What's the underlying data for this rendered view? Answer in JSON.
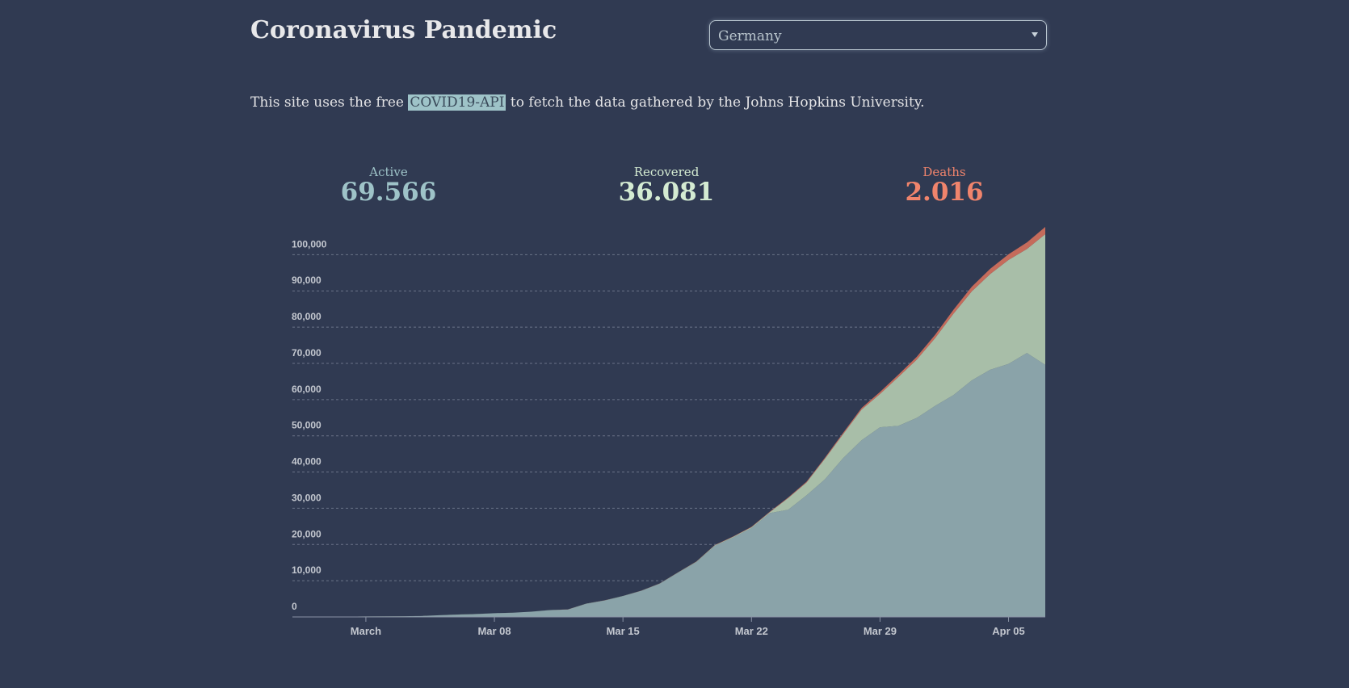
{
  "header": {
    "title": "Coronavirus Pandemic",
    "country": "Germany"
  },
  "intro": {
    "before": "This site uses the free",
    "link": "COVID19-API",
    "after": "to fetch the data gathered by the Johns Hopkins University."
  },
  "stats": [
    {
      "label": "Active",
      "value": "69.566",
      "color": "#9ec3c8"
    },
    {
      "label": "Recovered",
      "value": "36.081",
      "color": "#d4ebd2"
    },
    {
      "label": "Deaths",
      "value": "2.016",
      "color": "#f0846c"
    }
  ],
  "chart_data": {
    "type": "stacked-area",
    "x": [
      "Feb 26",
      "Feb 27",
      "Feb 28",
      "Feb 29",
      "Mar 01",
      "Mar 02",
      "Mar 03",
      "Mar 04",
      "Mar 05",
      "Mar 06",
      "Mar 07",
      "Mar 08",
      "Mar 09",
      "Mar 10",
      "Mar 11",
      "Mar 12",
      "Mar 13",
      "Mar 14",
      "Mar 15",
      "Mar 16",
      "Mar 17",
      "Mar 18",
      "Mar 19",
      "Mar 20",
      "Mar 21",
      "Mar 22",
      "Mar 23",
      "Mar 24",
      "Mar 25",
      "Mar 26",
      "Mar 27",
      "Mar 28",
      "Mar 29",
      "Mar 30",
      "Mar 31",
      "Apr 01",
      "Apr 02",
      "Apr 03",
      "Apr 04",
      "Apr 05",
      "Apr 06",
      "Apr 07"
    ],
    "xticks": [
      {
        "value": "Mar 01",
        "label": "March"
      },
      "Mar 08",
      "Mar 15",
      "Mar 22",
      "Mar 29",
      "Apr 05"
    ],
    "series": [
      {
        "name": "Active",
        "color": "#8aa3a9",
        "values": [
          11,
          30,
          32,
          63,
          114,
          143,
          180,
          246,
          466,
          653,
          781,
          1022,
          1156,
          1437,
          1880,
          2050,
          3622,
          4530,
          5738,
          7209,
          9166,
          12194,
          15163,
          19601,
          21896,
          24513,
          28667,
          29586,
          33570,
          37998,
          43871,
          48781,
          52351,
          52740,
          54933,
          58252,
          61247,
          65309,
          68248,
          69839,
          72864,
          69566
        ]
      },
      {
        "name": "Recovered",
        "color": "#a8bea8",
        "values": [
          16,
          16,
          16,
          16,
          16,
          16,
          16,
          16,
          16,
          17,
          18,
          18,
          18,
          18,
          25,
          25,
          46,
          46,
          46,
          46,
          67,
          105,
          113,
          180,
          233,
          266,
          266,
          3243,
          3547,
          5673,
          6658,
          8481,
          9211,
          13500,
          16100,
          18700,
          22440,
          24575,
          26400,
          28700,
          28700,
          36081
        ]
      },
      {
        "name": "Deaths",
        "color": "#c56b5b",
        "values": [
          0,
          0,
          0,
          0,
          0,
          0,
          0,
          0,
          0,
          0,
          0,
          0,
          2,
          2,
          3,
          3,
          7,
          9,
          11,
          17,
          24,
          28,
          44,
          67,
          84,
          94,
          123,
          157,
          206,
          267,
          342,
          433,
          533,
          645,
          775,
          920,
          1107,
          1275,
          1444,
          1584,
          1810,
          2016
        ]
      }
    ],
    "ylim": [
      0,
      107663
    ],
    "yticks": [
      0,
      {
        "value": 10000,
        "label": "10,000"
      },
      {
        "value": 20000,
        "label": "20,000"
      },
      {
        "value": 30000,
        "label": "30,000"
      },
      {
        "value": 40000,
        "label": "40,000"
      },
      {
        "value": 50000,
        "label": "50,000"
      },
      {
        "value": 60000,
        "label": "60,000"
      },
      {
        "value": 70000,
        "label": "70,000"
      },
      {
        "value": 80000,
        "label": "80,000"
      },
      {
        "value": 90000,
        "label": "90,000"
      },
      {
        "value": 100000,
        "label": "100,000"
      }
    ],
    "grid": true
  }
}
